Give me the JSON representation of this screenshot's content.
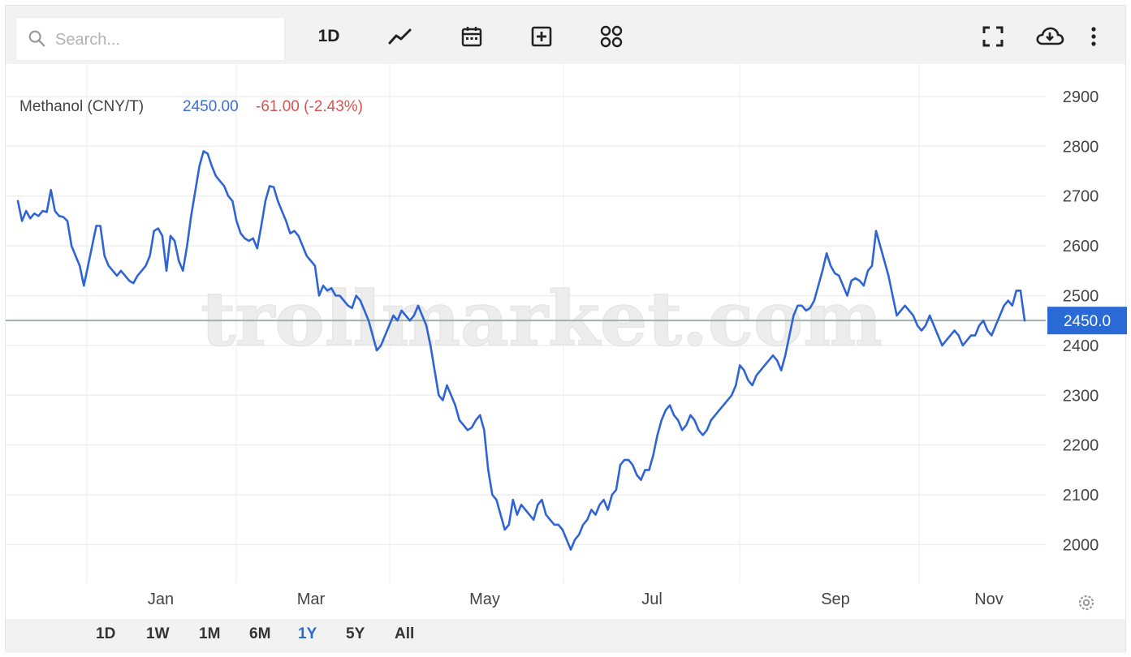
{
  "search": {
    "placeholder": "Search..."
  },
  "toolbar": {
    "interval_label": "1D",
    "icons": [
      "search-icon",
      "line-chart-icon",
      "calendar-icon",
      "add-box-icon",
      "grid-icon",
      "fullscreen-icon",
      "cloud-download-icon",
      "more-vert-icon"
    ]
  },
  "header": {
    "symbol": "Methanol (CNY/T)",
    "price": "2450.00",
    "change": "-61.00 (-2.43%)"
  },
  "range_buttons": [
    "1D",
    "1W",
    "1M",
    "6M",
    "1Y",
    "5Y",
    "All"
  ],
  "active_range": "1Y",
  "colors": {
    "line": "#2f64d4",
    "price_badge": "#2a6ad6",
    "change_negative": "#d9534f",
    "price_text": "#3d6fd6",
    "grid": "#efefef"
  },
  "watermark": "trollmarket.com",
  "chart_data": {
    "type": "line",
    "title": "Methanol (CNY/T)",
    "xlabel": "",
    "ylabel": "",
    "ylim": [
      1890,
      2965
    ],
    "y_ticks": [
      2000,
      2100,
      2200,
      2300,
      2400,
      2500,
      2600,
      2700,
      2800,
      2900
    ],
    "x_ticks": [
      "Jan",
      "Mar",
      "May",
      "Jul",
      "Sep",
      "Nov"
    ],
    "last_price": 2450.0,
    "last_price_label": "2450.0",
    "grid": true,
    "series": [
      {
        "values": [
          2690,
          2650,
          2670,
          2655,
          2665,
          2660,
          2670,
          2668,
          2712,
          2670,
          2660,
          2658,
          2650,
          2600,
          2580,
          2560,
          2520,
          2560,
          2600,
          2640,
          2640,
          2580,
          2560,
          2550,
          2540,
          2550,
          2540,
          2530,
          2525,
          2540,
          2550,
          2560,
          2580,
          2630,
          2635,
          2620,
          2550,
          2620,
          2610,
          2570,
          2550,
          2600,
          2660,
          2710,
          2760,
          2790,
          2785,
          2760,
          2740,
          2730,
          2720,
          2700,
          2690,
          2650,
          2625,
          2615,
          2610,
          2615,
          2595,
          2640,
          2690,
          2720,
          2718,
          2690,
          2670,
          2650,
          2625,
          2630,
          2620,
          2600,
          2580,
          2570,
          2560,
          2500,
          2520,
          2510,
          2515,
          2500,
          2500,
          2490,
          2480,
          2475,
          2500,
          2490,
          2470,
          2450,
          2420,
          2390,
          2400,
          2420,
          2440,
          2460,
          2450,
          2470,
          2460,
          2450,
          2460,
          2480,
          2460,
          2440,
          2400,
          2350,
          2300,
          2290,
          2320,
          2300,
          2280,
          2250,
          2240,
          2230,
          2235,
          2250,
          2260,
          2230,
          2150,
          2100,
          2090,
          2060,
          2030,
          2040,
          2090,
          2060,
          2080,
          2070,
          2060,
          2050,
          2080,
          2090,
          2060,
          2050,
          2040,
          2040,
          2030,
          2010,
          1990,
          2010,
          2020,
          2040,
          2050,
          2070,
          2060,
          2080,
          2090,
          2070,
          2100,
          2110,
          2160,
          2170,
          2170,
          2160,
          2140,
          2130,
          2150,
          2150,
          2180,
          2220,
          2250,
          2270,
          2280,
          2260,
          2250,
          2230,
          2240,
          2260,
          2250,
          2230,
          2220,
          2230,
          2250,
          2260,
          2270,
          2280,
          2290,
          2300,
          2320,
          2360,
          2350,
          2330,
          2320,
          2340,
          2350,
          2360,
          2370,
          2380,
          2370,
          2350,
          2380,
          2420,
          2460,
          2480,
          2480,
          2470,
          2475,
          2490,
          2520,
          2550,
          2585,
          2560,
          2545,
          2540,
          2520,
          2500,
          2530,
          2535,
          2530,
          2520,
          2550,
          2560,
          2630,
          2600,
          2570,
          2540,
          2500,
          2460,
          2470,
          2480,
          2470,
          2460,
          2440,
          2430,
          2440,
          2460,
          2440,
          2420,
          2400,
          2410,
          2420,
          2430,
          2420,
          2400,
          2410,
          2420,
          2420,
          2440,
          2450,
          2430,
          2420,
          2440,
          2460,
          2480,
          2490,
          2480,
          2510,
          2510,
          2450
        ]
      }
    ]
  }
}
